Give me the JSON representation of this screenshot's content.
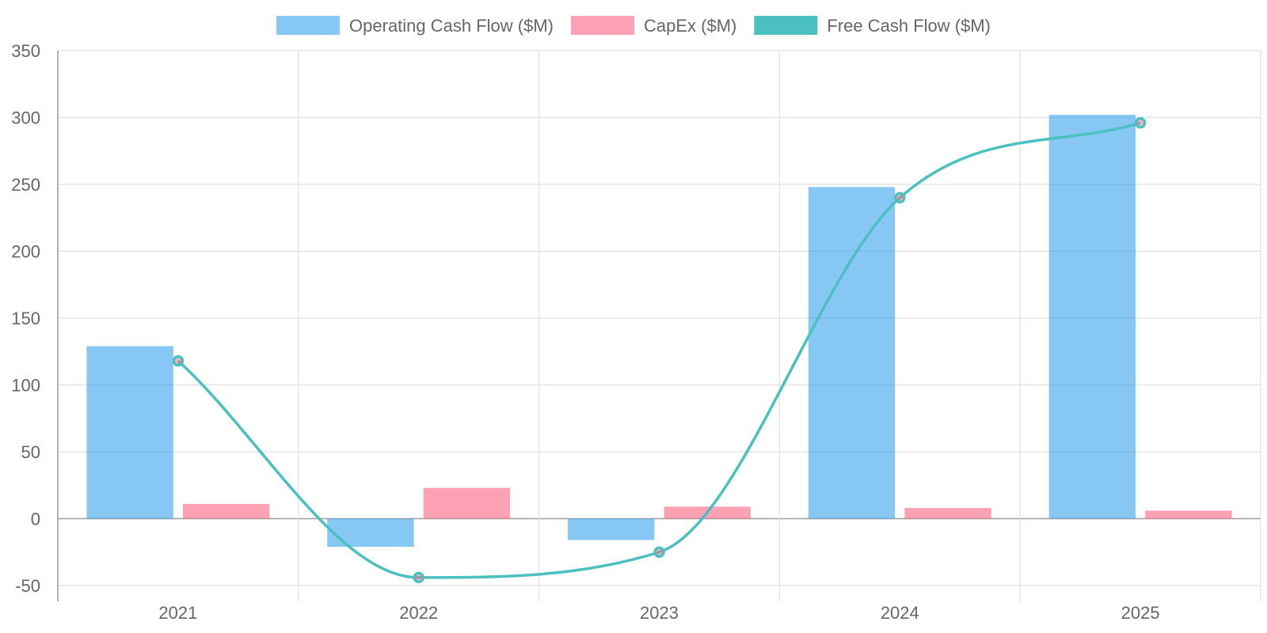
{
  "chart_data": {
    "type": "bar",
    "categories": [
      "2021",
      "2022",
      "2023",
      "2024",
      "2025"
    ],
    "series": [
      {
        "name": "Operating Cash Flow ($M)",
        "type": "bar",
        "color": "#36A2EB",
        "values": [
          129,
          -21,
          -16,
          248,
          302
        ]
      },
      {
        "name": "CapEx ($M)",
        "type": "bar",
        "color": "#FF6384",
        "values": [
          11,
          23,
          9,
          8,
          6
        ]
      },
      {
        "name": "Free Cash Flow ($M)",
        "type": "line",
        "color": "#4BC0C0",
        "values": [
          118,
          -44,
          -25,
          240,
          296
        ]
      }
    ],
    "yticks": [
      "350",
      "300",
      "250",
      "200",
      "150",
      "100",
      "50",
      "0",
      "-50"
    ],
    "ylim": [
      -50,
      350
    ],
    "grid": true,
    "legend": "top-center",
    "xlabel": "",
    "ylabel": ""
  }
}
